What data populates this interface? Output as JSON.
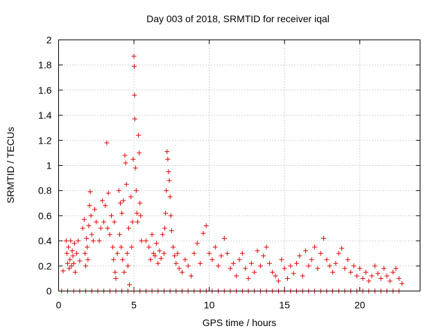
{
  "chart_data": {
    "type": "scatter",
    "title": "Day 003 of 2018, SRMTID for receiver iqal",
    "xlabel": "GPS time / hours",
    "ylabel": "SRMTID / TECUs",
    "xlim": [
      0,
      24
    ],
    "ylim": [
      0,
      2
    ],
    "xticks": [
      0,
      5,
      10,
      15,
      20
    ],
    "yticks": [
      0,
      0.2,
      0.4,
      0.6,
      0.8,
      1,
      1.2,
      1.4,
      1.6,
      1.8,
      2
    ],
    "grid": true,
    "marker": "+",
    "color": "#e00000",
    "series": [
      {
        "name": "SRMTID",
        "points": [
          [
            0.3,
            0.16
          ],
          [
            0.5,
            0.4
          ],
          [
            0.55,
            0.3
          ],
          [
            0.6,
            0.22
          ],
          [
            0.65,
            0.35
          ],
          [
            0.7,
            0.18
          ],
          [
            0.75,
            0.25
          ],
          [
            0.8,
            0.4
          ],
          [
            0.85,
            0.2
          ],
          [
            0.9,
            0.32
          ],
          [
            0.95,
            0.28
          ],
          [
            1.0,
            0.22
          ],
          [
            1.05,
            0.38
          ],
          [
            1.1,
            0.15
          ],
          [
            1.2,
            0.3
          ],
          [
            1.3,
            0.4
          ],
          [
            1.4,
            0.24
          ],
          [
            1.6,
            0.5
          ],
          [
            1.7,
            0.57
          ],
          [
            1.75,
            0.3
          ],
          [
            1.8,
            0.2
          ],
          [
            1.85,
            0.42
          ],
          [
            1.9,
            0.35
          ],
          [
            1.95,
            0.25
          ],
          [
            2.0,
            0.52
          ],
          [
            2.05,
            0.68
          ],
          [
            2.1,
            0.79
          ],
          [
            2.15,
            0.6
          ],
          [
            2.2,
            0.45
          ],
          [
            2.3,
            0.4
          ],
          [
            2.4,
            0.65
          ],
          [
            2.5,
            0.55
          ],
          [
            2.7,
            0.4
          ],
          [
            2.8,
            0.5
          ],
          [
            2.9,
            0.72
          ],
          [
            3.0,
            0.55
          ],
          [
            3.1,
            0.68
          ],
          [
            3.2,
            1.18
          ],
          [
            3.25,
            0.5
          ],
          [
            3.3,
            0.78
          ],
          [
            3.4,
            0.45
          ],
          [
            3.5,
            0.6
          ],
          [
            3.6,
            0.35
          ],
          [
            3.65,
            0.25
          ],
          [
            3.7,
            0.55
          ],
          [
            3.75,
            0.15
          ],
          [
            3.8,
            0.1
          ],
          [
            3.9,
            0.3
          ],
          [
            4.0,
            0.8
          ],
          [
            4.05,
            0.45
          ],
          [
            4.1,
            0.7
          ],
          [
            4.15,
            0.35
          ],
          [
            4.2,
            0.62
          ],
          [
            4.25,
            0.25
          ],
          [
            4.3,
            0.72
          ],
          [
            4.35,
            0.15
          ],
          [
            4.4,
            1.08
          ],
          [
            4.45,
            1.02
          ],
          [
            4.5,
            0.85
          ],
          [
            4.55,
            0.3
          ],
          [
            4.6,
            0.2
          ],
          [
            4.65,
            0.5
          ],
          [
            4.7,
            0.05
          ],
          [
            4.8,
            0.75
          ],
          [
            4.85,
            0.35
          ],
          [
            4.9,
            0.55
          ],
          [
            4.95,
            1.05
          ],
          [
            5.0,
            1.87
          ],
          [
            5.02,
            1.79
          ],
          [
            5.04,
            1.56
          ],
          [
            5.06,
            1.37
          ],
          [
            5.1,
            0.98
          ],
          [
            5.15,
            0.8
          ],
          [
            5.2,
            0.62
          ],
          [
            5.25,
            0.55
          ],
          [
            5.3,
            1.24
          ],
          [
            5.35,
            1.1
          ],
          [
            5.4,
            0.7
          ],
          [
            5.45,
            0.6
          ],
          [
            5.5,
            0.4
          ],
          [
            5.8,
            0.4
          ],
          [
            6.0,
            0.35
          ],
          [
            6.1,
            0.25
          ],
          [
            6.2,
            0.45
          ],
          [
            6.3,
            0.3
          ],
          [
            6.4,
            0.28
          ],
          [
            6.5,
            0.38
          ],
          [
            6.6,
            0.22
          ],
          [
            6.7,
            0.32
          ],
          [
            6.8,
            0.26
          ],
          [
            6.9,
            0.45
          ],
          [
            7.0,
            0.3
          ],
          [
            7.05,
            0.5
          ],
          [
            7.1,
            0.62
          ],
          [
            7.15,
            0.8
          ],
          [
            7.2,
            1.11
          ],
          [
            7.25,
            1.05
          ],
          [
            7.3,
            0.95
          ],
          [
            7.35,
            0.88
          ],
          [
            7.4,
            0.75
          ],
          [
            7.45,
            0.6
          ],
          [
            7.5,
            0.48
          ],
          [
            7.6,
            0.35
          ],
          [
            7.7,
            0.28
          ],
          [
            7.8,
            0.22
          ],
          [
            7.9,
            0.3
          ],
          [
            8.0,
            0.18
          ],
          [
            8.2,
            0.15
          ],
          [
            8.4,
            0.25
          ],
          [
            8.6,
            0.2
          ],
          [
            8.8,
            0.12
          ],
          [
            9.0,
            0.3
          ],
          [
            9.2,
            0.38
          ],
          [
            9.4,
            0.22
          ],
          [
            9.6,
            0.46
          ],
          [
            9.8,
            0.52
          ],
          [
            10.0,
            0.3
          ],
          [
            10.2,
            0.25
          ],
          [
            10.4,
            0.35
          ],
          [
            10.6,
            0.2
          ],
          [
            10.8,
            0.28
          ],
          [
            11.0,
            0.42
          ],
          [
            11.2,
            0.3
          ],
          [
            11.4,
            0.18
          ],
          [
            11.6,
            0.22
          ],
          [
            11.8,
            0.12
          ],
          [
            12.0,
            0.25
          ],
          [
            12.2,
            0.3
          ],
          [
            12.4,
            0.18
          ],
          [
            12.6,
            0.1
          ],
          [
            12.8,
            0.22
          ],
          [
            13.0,
            0.15
          ],
          [
            13.2,
            0.32
          ],
          [
            13.4,
            0.2
          ],
          [
            13.6,
            0.28
          ],
          [
            13.8,
            0.35
          ],
          [
            14.0,
            0.22
          ],
          [
            14.2,
            0.15
          ],
          [
            14.4,
            0.12
          ],
          [
            14.6,
            0.08
          ],
          [
            14.8,
            0.25
          ],
          [
            15.0,
            0.18
          ],
          [
            15.2,
            0.1
          ],
          [
            15.4,
            0.2
          ],
          [
            15.6,
            0.14
          ],
          [
            15.8,
            0.22
          ],
          [
            16.0,
            0.28
          ],
          [
            16.2,
            0.12
          ],
          [
            16.4,
            0.32
          ],
          [
            16.6,
            0.2
          ],
          [
            16.8,
            0.25
          ],
          [
            17.0,
            0.35
          ],
          [
            17.2,
            0.18
          ],
          [
            17.4,
            0.3
          ],
          [
            17.6,
            0.42
          ],
          [
            17.8,
            0.25
          ],
          [
            18.0,
            0.2
          ],
          [
            18.2,
            0.15
          ],
          [
            18.4,
            0.22
          ],
          [
            18.6,
            0.3
          ],
          [
            18.8,
            0.34
          ],
          [
            19.0,
            0.18
          ],
          [
            19.2,
            0.25
          ],
          [
            19.4,
            0.15
          ],
          [
            19.6,
            0.2
          ],
          [
            19.8,
            0.12
          ],
          [
            20.0,
            0.18
          ],
          [
            20.2,
            0.1
          ],
          [
            20.4,
            0.15
          ],
          [
            20.6,
            0.08
          ],
          [
            20.8,
            0.12
          ],
          [
            21.0,
            0.2
          ],
          [
            21.2,
            0.14
          ],
          [
            21.4,
            0.1
          ],
          [
            21.6,
            0.18
          ],
          [
            21.8,
            0.12
          ],
          [
            22.0,
            0.08
          ],
          [
            22.2,
            0.15
          ],
          [
            22.4,
            0.18
          ],
          [
            22.6,
            0.1
          ],
          [
            22.8,
            0.06
          ],
          [
            0.2,
            0
          ],
          [
            0.6,
            0
          ],
          [
            1.0,
            0
          ],
          [
            1.4,
            0
          ],
          [
            1.8,
            0
          ],
          [
            2.2,
            0
          ],
          [
            2.6,
            0
          ],
          [
            3.0,
            0
          ],
          [
            3.4,
            0
          ],
          [
            3.8,
            0
          ],
          [
            4.2,
            0
          ],
          [
            4.6,
            0
          ],
          [
            5.0,
            0
          ],
          [
            5.4,
            0
          ],
          [
            5.8,
            0
          ],
          [
            6.2,
            0
          ],
          [
            6.6,
            0
          ],
          [
            7.0,
            0
          ],
          [
            7.4,
            0
          ],
          [
            7.8,
            0
          ],
          [
            8.2,
            0
          ],
          [
            8.6,
            0
          ],
          [
            9.0,
            0
          ],
          [
            9.4,
            0
          ],
          [
            9.8,
            0
          ],
          [
            10.2,
            0
          ],
          [
            10.6,
            0
          ],
          [
            11.0,
            0
          ],
          [
            11.4,
            0
          ],
          [
            11.8,
            0
          ],
          [
            12.2,
            0
          ],
          [
            12.6,
            0
          ],
          [
            13.0,
            0
          ],
          [
            13.4,
            0
          ],
          [
            13.8,
            0
          ],
          [
            14.2,
            0
          ],
          [
            14.6,
            0
          ],
          [
            15.0,
            0
          ],
          [
            15.4,
            0
          ],
          [
            15.8,
            0
          ],
          [
            16.2,
            0
          ],
          [
            16.6,
            0
          ],
          [
            17.0,
            0
          ],
          [
            17.4,
            0
          ],
          [
            17.8,
            0
          ],
          [
            18.2,
            0
          ],
          [
            18.6,
            0
          ],
          [
            19.0,
            0
          ],
          [
            19.4,
            0
          ],
          [
            19.8,
            0
          ],
          [
            20.2,
            0
          ],
          [
            20.6,
            0
          ],
          [
            21.0,
            0
          ],
          [
            21.4,
            0
          ],
          [
            21.8,
            0
          ],
          [
            22.2,
            0
          ],
          [
            22.6,
            0
          ]
        ]
      }
    ]
  }
}
